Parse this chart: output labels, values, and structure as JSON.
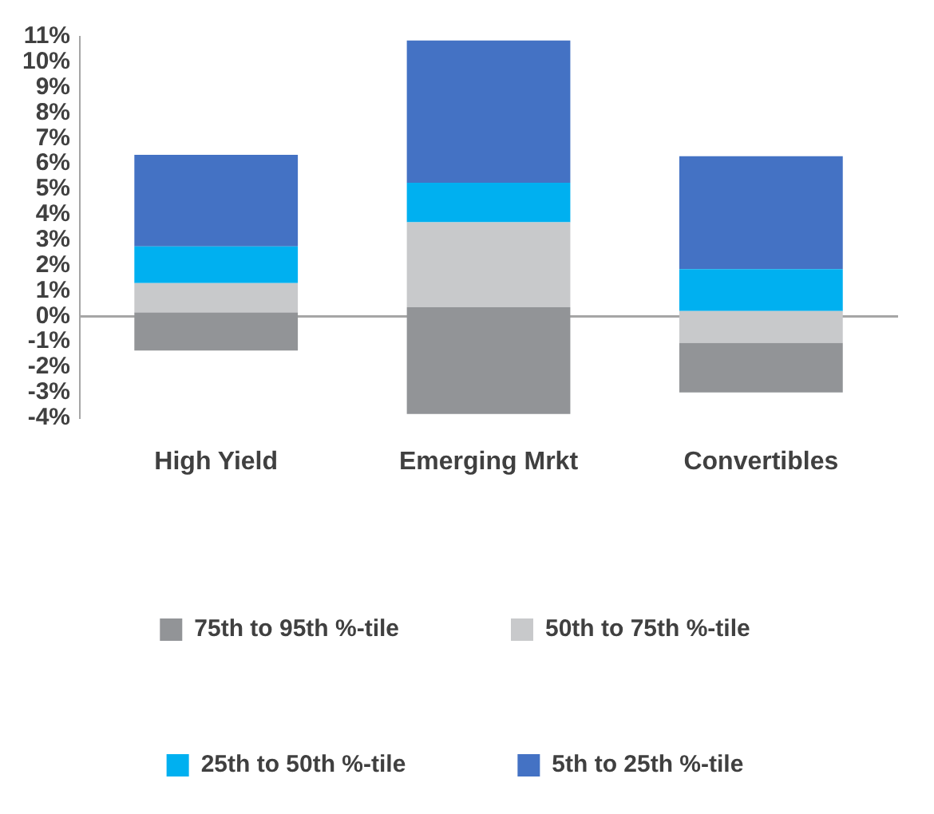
{
  "chart_data": {
    "type": "bar",
    "categories": [
      "High Yield",
      "Emerging Mrkt",
      "Convertibles"
    ],
    "series": [
      {
        "name": "75th to 95th %-tile",
        "color": "#929497",
        "base": [
          -1.35,
          -3.85,
          -3.0
        ],
        "values": [
          1.5,
          4.2,
          1.95
        ]
      },
      {
        "name": "50th to 75th %-tile",
        "color": "#c8c9cb",
        "base": [
          0.15,
          0.35,
          -1.05
        ],
        "values": [
          1.15,
          3.35,
          1.25
        ]
      },
      {
        "name": "25th to 50th %-tile",
        "color": "#00b0f0",
        "base": [
          1.3,
          3.7,
          0.2
        ],
        "values": [
          1.45,
          1.55,
          1.65
        ]
      },
      {
        "name": "5th to 25th %-tile",
        "color": "#4472c4",
        "base": [
          2.75,
          5.25,
          1.85
        ],
        "values": [
          3.6,
          5.6,
          4.45
        ]
      }
    ],
    "ylim": [
      -4,
      11
    ],
    "yticks": [
      {
        "value": -4,
        "label": "-4%"
      },
      {
        "value": -3,
        "label": "-3%"
      },
      {
        "value": -2,
        "label": "-2%"
      },
      {
        "value": -1,
        "label": "-1%"
      },
      {
        "value": 0,
        "label": "0%"
      },
      {
        "value": 1,
        "label": "1%"
      },
      {
        "value": 2,
        "label": "2%"
      },
      {
        "value": 3,
        "label": "3%"
      },
      {
        "value": 4,
        "label": "4%"
      },
      {
        "value": 5,
        "label": "5%"
      },
      {
        "value": 6,
        "label": "6%"
      },
      {
        "value": 7,
        "label": "7%"
      },
      {
        "value": 8,
        "label": "8%"
      },
      {
        "value": 9,
        "label": "9%"
      },
      {
        "value": 10,
        "label": "10%"
      },
      {
        "value": 11,
        "label": "11%"
      }
    ],
    "legend": "bottom"
  }
}
